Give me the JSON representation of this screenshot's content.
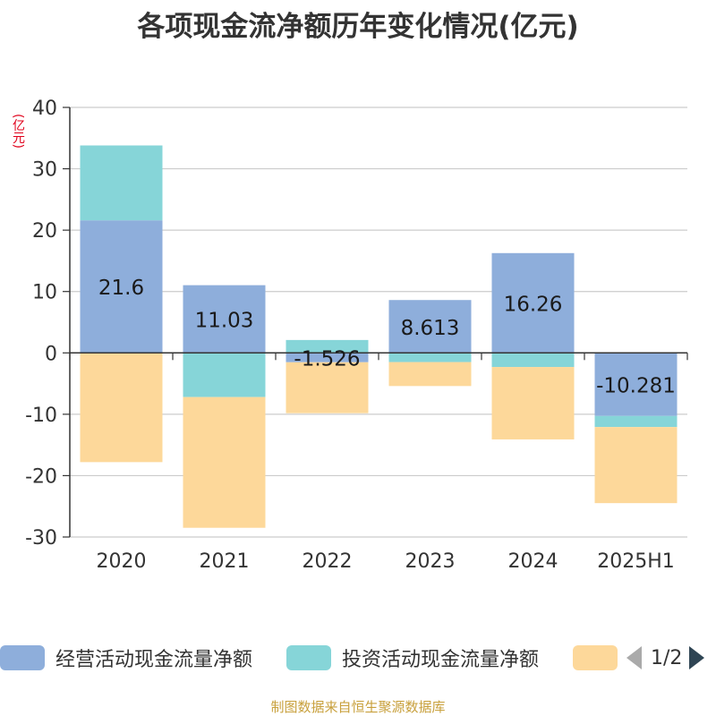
{
  "title": "各项现金流净额历年变化情况(亿元)",
  "unit_label": "(亿元)",
  "footer": "制图数据来自恒生聚源数据库",
  "legend": {
    "items": [
      {
        "label": "经营活动现金流量净额",
        "color": "#8eaedb"
      },
      {
        "label": "投资活动现金流量净额",
        "color": "#86d5d8"
      },
      {
        "label": "",
        "color": "#fdd89a"
      }
    ],
    "page_text": "1/2"
  },
  "chart_data": {
    "type": "bar",
    "stacked": true,
    "categories": [
      "2020",
      "2021",
      "2022",
      "2023",
      "2024",
      "2025H1"
    ],
    "ylim": [
      -30,
      40
    ],
    "yticks": [
      40,
      30,
      20,
      10,
      0,
      -10,
      -20,
      -30
    ],
    "grid": true,
    "legend_position": "bottom",
    "series": [
      {
        "name": "经营活动现金流量净额",
        "color": "#8eaedb",
        "values": [
          21.6,
          11.03,
          -1.526,
          8.613,
          16.26,
          -10.281
        ],
        "labels": [
          "21.6",
          "11.03",
          "-1.526",
          "8.613",
          "16.26",
          "-10.281"
        ]
      },
      {
        "name": "投资活动现金流量净额",
        "color": "#86d5d8",
        "values": [
          12.2,
          -7.2,
          2.1,
          -1.5,
          -2.3,
          -1.8
        ]
      },
      {
        "color": "#fdd89a",
        "values": [
          -17.8,
          -21.3,
          -8.3,
          -3.9,
          -11.8,
          -12.4
        ]
      }
    ]
  }
}
